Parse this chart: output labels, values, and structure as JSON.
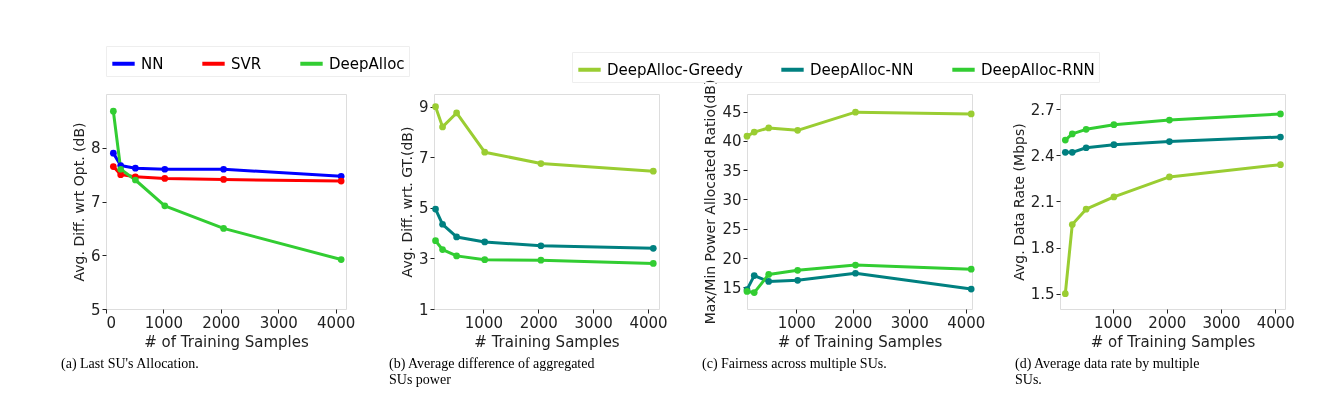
{
  "chart_data": [
    {
      "type": "line",
      "title": "(a) Last SU's Allocation.",
      "xlabel": "# of Training Samples",
      "ylabel": "Avg. Diff. wrt Opt. (dB)",
      "x": [
        128,
        256,
        512,
        1024,
        2048,
        4096
      ],
      "series": [
        {
          "name": "NN",
          "color": "#0000ff",
          "values": [
            7.9,
            7.67,
            7.62,
            7.6,
            7.6,
            7.47
          ]
        },
        {
          "name": "SVR",
          "color": "#ff0000",
          "values": [
            7.65,
            7.5,
            7.46,
            7.43,
            7.41,
            7.38
          ]
        },
        {
          "name": "DeepAlloc",
          "color": "#32cd32",
          "values": [
            8.68,
            7.6,
            7.4,
            6.92,
            6.5,
            5.92
          ]
        }
      ],
      "xlim": [
        0,
        4180
      ],
      "xticks": [
        0,
        1000,
        2000,
        3000,
        4000
      ],
      "ylim": [
        5,
        9
      ],
      "yticks": [
        5,
        6,
        7,
        8
      ],
      "grid": false,
      "legend": "top",
      "marker": "circle",
      "line_style": "solid"
    },
    {
      "type": "line",
      "title": "(b) Average difference of aggregated SUs power",
      "xlabel": "# Training Samples",
      "ylabel": "Avg. Diff. wrt. GT.(dB)",
      "x": [
        128,
        256,
        512,
        1024,
        2048,
        4096
      ],
      "series": [
        {
          "color": "#9acd32",
          "values": [
            9.0,
            8.2,
            8.75,
            7.2,
            6.75,
            6.45
          ]
        },
        {
          "color": "#008080",
          "values": [
            4.95,
            4.35,
            3.85,
            3.65,
            3.5,
            3.4
          ]
        },
        {
          "color": "#32cd32",
          "values": [
            3.7,
            3.35,
            3.1,
            2.95,
            2.93,
            2.8
          ]
        }
      ],
      "xlim": [
        100,
        4200
      ],
      "xticks": [
        1000,
        2000,
        3000,
        4000
      ],
      "ylim": [
        1,
        9.5
      ],
      "yticks": [
        1,
        3,
        5,
        7,
        9
      ],
      "grid": false,
      "legend": false,
      "marker": "circle",
      "line_style": "solid"
    },
    {
      "type": "line",
      "title": "(c) Fairness across multiple SUs.",
      "xlabel": "# of Training Samples",
      "ylabel": "Max/Min Power Allocated Ratio(dB)",
      "x": [
        128,
        256,
        512,
        1024,
        2048,
        4096
      ],
      "series": [
        {
          "name": "DeepAlloc-Greedy",
          "color": "#9acd32",
          "values": [
            40.8,
            41.5,
            42.2,
            41.8,
            44.9,
            44.6
          ]
        },
        {
          "name": "DeepAlloc-NN",
          "color": "#008080",
          "values": [
            14.6,
            17.0,
            16.0,
            16.2,
            17.4,
            14.7
          ]
        },
        {
          "name": "DeepAlloc-RNN",
          "color": "#32cd32",
          "values": [
            14.3,
            14.1,
            17.2,
            17.9,
            18.8,
            18.1
          ]
        }
      ],
      "xlim": [
        128,
        4110
      ],
      "xticks": [
        1000,
        2000,
        3000,
        4000
      ],
      "ylim": [
        11.3,
        48
      ],
      "yticks": [
        15,
        20,
        25,
        30,
        35,
        40,
        45
      ],
      "grid": false,
      "legend": "top",
      "marker": "circle",
      "line_style": "solid"
    },
    {
      "type": "line",
      "title": "(d) Average data rate by multiple SUs.",
      "xlabel": "# of Training Samples",
      "ylabel": "Avg. Data Rate (Mbps)",
      "x": [
        128,
        256,
        512,
        1024,
        2048,
        4096
      ],
      "series": [
        {
          "color": "#9acd32",
          "values": [
            1.5,
            1.95,
            2.05,
            2.13,
            2.26,
            2.34
          ]
        },
        {
          "color": "#008080",
          "values": [
            2.42,
            2.42,
            2.45,
            2.47,
            2.49,
            2.52
          ]
        },
        {
          "color": "#32cd32",
          "values": [
            2.5,
            2.54,
            2.57,
            2.6,
            2.63,
            2.67
          ]
        }
      ],
      "xlim": [
        30,
        4180
      ],
      "xticks": [
        1000,
        2000,
        3000,
        4000
      ],
      "ylim": [
        1.4,
        2.8
      ],
      "yticks": [
        1.5,
        1.8,
        2.1,
        2.4,
        2.7
      ],
      "grid": false,
      "legend": false,
      "marker": "circle",
      "line_style": "solid"
    }
  ]
}
